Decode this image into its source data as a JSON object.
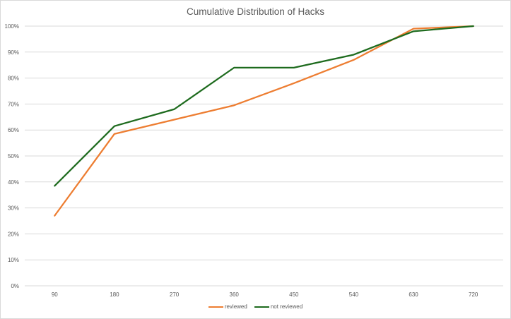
{
  "chart_data": {
    "type": "line",
    "title": "Cumulative Distribution of Hacks",
    "xlabel": "",
    "ylabel": "",
    "categories": [
      "90",
      "180",
      "270",
      "360",
      "450",
      "540",
      "630",
      "720"
    ],
    "ylim": [
      0,
      100
    ],
    "y_ticks": [
      0,
      10,
      20,
      30,
      40,
      50,
      60,
      70,
      80,
      90,
      100
    ],
    "y_tick_format": "%",
    "grid": "horizontal",
    "legend_position": "bottom",
    "series": [
      {
        "name": "reviewed",
        "color": "#ed7d31",
        "values": [
          27,
          58.5,
          64,
          69.5,
          78,
          87,
          99,
          100
        ]
      },
      {
        "name": "not reviewed",
        "color": "#1e6b1e",
        "values": [
          38.5,
          61.5,
          68,
          84,
          84,
          89,
          98,
          100
        ]
      }
    ]
  }
}
